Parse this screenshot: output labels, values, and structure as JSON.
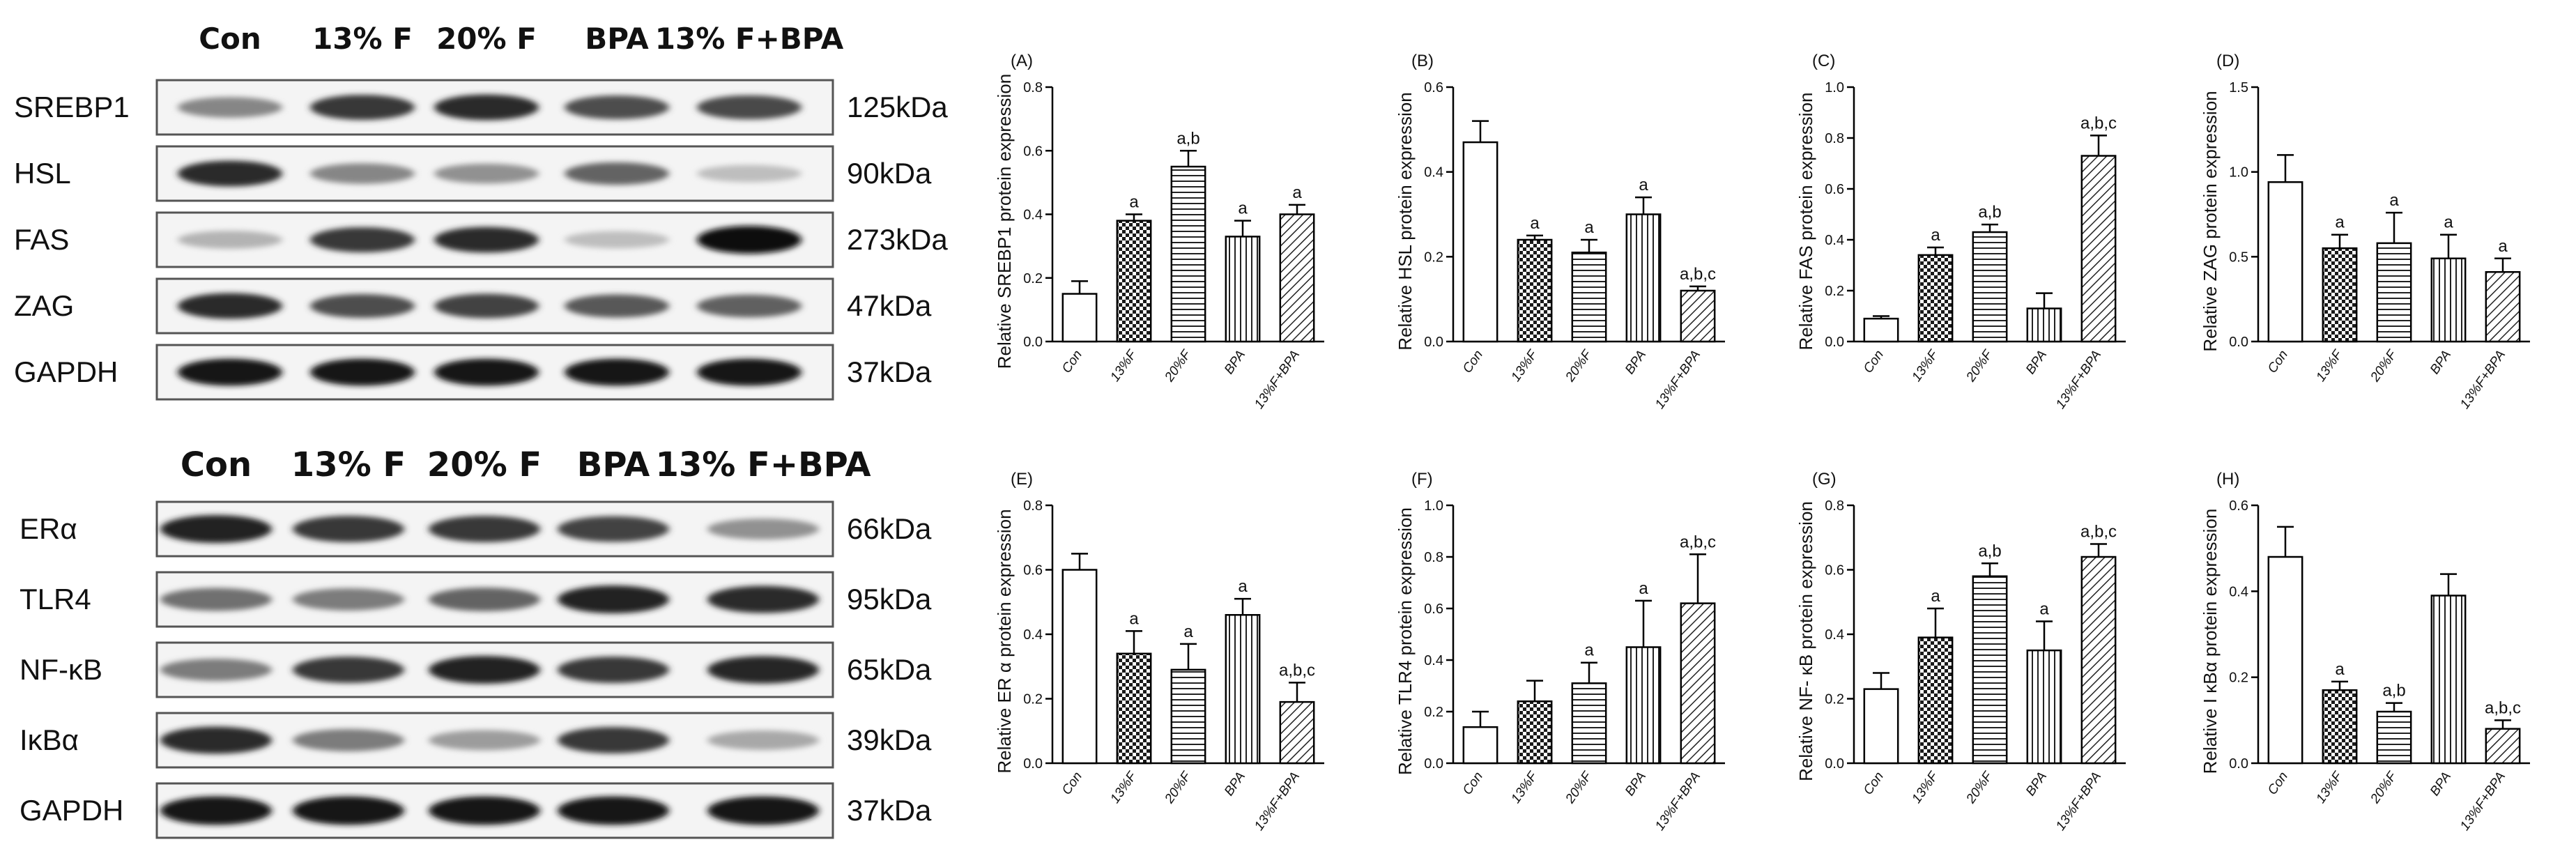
{
  "lanes": [
    "Con",
    "13% F",
    "20% F",
    "BPA",
    "13% F+BPA"
  ],
  "blots_top": [
    {
      "name": "SREBP1",
      "size": "125kDa",
      "intensity": [
        0.45,
        0.8,
        0.85,
        0.7,
        0.72
      ]
    },
    {
      "name": "HSL",
      "size": "90kDa",
      "intensity": [
        0.85,
        0.45,
        0.4,
        0.6,
        0.2
      ]
    },
    {
      "name": "FAS",
      "size": "273kDa",
      "intensity": [
        0.25,
        0.8,
        0.85,
        0.2,
        1.0
      ]
    },
    {
      "name": "ZAG",
      "size": "47kDa",
      "intensity": [
        0.85,
        0.7,
        0.75,
        0.65,
        0.62
      ]
    },
    {
      "name": "GAPDH",
      "size": "37kDa",
      "intensity": [
        0.95,
        0.95,
        0.95,
        0.95,
        0.95
      ]
    }
  ],
  "blots_bottom": [
    {
      "name": "ERα",
      "size": "66kDa",
      "intensity": [
        0.9,
        0.8,
        0.8,
        0.75,
        0.4
      ]
    },
    {
      "name": "TLR4",
      "size": "95kDa",
      "intensity": [
        0.55,
        0.5,
        0.6,
        0.9,
        0.85
      ]
    },
    {
      "name": "NF-κB",
      "size": "65kDa",
      "intensity": [
        0.5,
        0.8,
        0.9,
        0.8,
        0.88
      ]
    },
    {
      "name": "IκBα",
      "size": "39kDa",
      "intensity": [
        0.85,
        0.5,
        0.35,
        0.8,
        0.3
      ]
    },
    {
      "name": "GAPDH",
      "size": "37kDa",
      "intensity": [
        0.95,
        0.95,
        0.95,
        0.95,
        0.95
      ]
    }
  ],
  "chart_data": [
    {
      "type": "bar",
      "panel": "(A)",
      "ylabel": "Relative SREBP1 protein expression",
      "ylim": [
        0,
        0.8
      ],
      "ticks": [
        "0.0",
        "0.2",
        "0.4",
        "0.6",
        "0.8"
      ],
      "categories": [
        "Con",
        "13%F",
        "20%F",
        "BPA",
        "13%F+BPA"
      ],
      "values": [
        0.15,
        0.38,
        0.55,
        0.33,
        0.4
      ],
      "errors": [
        0.04,
        0.02,
        0.05,
        0.05,
        0.03
      ],
      "labels": [
        "",
        "a",
        "a,b",
        "a",
        "a"
      ]
    },
    {
      "type": "bar",
      "panel": "(B)",
      "ylabel": "Relative HSL protein expression",
      "ylim": [
        0,
        0.6
      ],
      "ticks": [
        "0.0",
        "0.2",
        "0.4",
        "0.6"
      ],
      "categories": [
        "Con",
        "13%F",
        "20%F",
        "BPA",
        "13%F+BPA"
      ],
      "values": [
        0.47,
        0.24,
        0.21,
        0.3,
        0.12
      ],
      "errors": [
        0.05,
        0.01,
        0.03,
        0.04,
        0.01
      ],
      "labels": [
        "",
        "a",
        "a",
        "a",
        "a,b,c"
      ]
    },
    {
      "type": "bar",
      "panel": "(C)",
      "ylabel": "Relative FAS protein expression",
      "ylim": [
        0,
        1.0
      ],
      "ticks": [
        "0.0",
        "0.2",
        "0.4",
        "0.6",
        "0.8",
        "1.0"
      ],
      "categories": [
        "Con",
        "13%F",
        "20%F",
        "BPA",
        "13%F+BPA"
      ],
      "values": [
        0.09,
        0.34,
        0.43,
        0.13,
        0.73
      ],
      "errors": [
        0.01,
        0.03,
        0.03,
        0.06,
        0.08
      ],
      "labels": [
        "",
        "a",
        "a,b",
        "",
        "a,b,c"
      ]
    },
    {
      "type": "bar",
      "panel": "(D)",
      "ylabel": "Relative ZAG protein expression",
      "ylim": [
        0,
        1.5
      ],
      "ticks": [
        "0.0",
        "0.5",
        "1.0",
        "1.5"
      ],
      "categories": [
        "Con",
        "13%F",
        "20%F",
        "BPA",
        "13%F+BPA"
      ],
      "values": [
        0.94,
        0.55,
        0.58,
        0.49,
        0.41
      ],
      "errors": [
        0.16,
        0.08,
        0.18,
        0.14,
        0.08
      ],
      "labels": [
        "",
        "a",
        "a",
        "a",
        "a"
      ]
    },
    {
      "type": "bar",
      "panel": "(E)",
      "ylabel": "Relative ER α protein expression",
      "ylim": [
        0,
        0.8
      ],
      "ticks": [
        "0.0",
        "0.2",
        "0.4",
        "0.6",
        "0.8"
      ],
      "categories": [
        "Con",
        "13%F",
        "20%F",
        "BPA",
        "13%F+BPA"
      ],
      "values": [
        0.6,
        0.34,
        0.29,
        0.46,
        0.19
      ],
      "errors": [
        0.05,
        0.07,
        0.08,
        0.05,
        0.06
      ],
      "labels": [
        "",
        "a",
        "a",
        "a",
        "a,b,c"
      ]
    },
    {
      "type": "bar",
      "panel": "(F)",
      "ylabel": "Relative TLR4 protein expression",
      "ylim": [
        0,
        1.0
      ],
      "ticks": [
        "0.0",
        "0.2",
        "0.4",
        "0.6",
        "0.8",
        "1.0"
      ],
      "categories": [
        "Con",
        "13%F",
        "20%F",
        "BPA",
        "13%F+BPA"
      ],
      "values": [
        0.14,
        0.24,
        0.31,
        0.45,
        0.62
      ],
      "errors": [
        0.06,
        0.08,
        0.08,
        0.18,
        0.19
      ],
      "labels": [
        "",
        "",
        "a",
        "a",
        "a,b,c"
      ]
    },
    {
      "type": "bar",
      "panel": "(G)",
      "ylabel": "Relative NF- κB protein expression",
      "ylim": [
        0,
        0.8
      ],
      "ticks": [
        "0.0",
        "0.2",
        "0.4",
        "0.6",
        "0.8"
      ],
      "categories": [
        "Con",
        "13%F",
        "20%F",
        "BPA",
        "13%F+BPA"
      ],
      "values": [
        0.23,
        0.39,
        0.58,
        0.35,
        0.64
      ],
      "errors": [
        0.05,
        0.09,
        0.04,
        0.09,
        0.04
      ],
      "labels": [
        "",
        "a",
        "a,b",
        "a",
        "a,b,c"
      ]
    },
    {
      "type": "bar",
      "panel": "(H)",
      "ylabel": "Relative I κBα protein expression",
      "ylim": [
        0,
        0.6
      ],
      "ticks": [
        "0.0",
        "0.2",
        "0.4",
        "0.6"
      ],
      "categories": [
        "Con",
        "13%F",
        "20%F",
        "BPA",
        "13%F+BPA"
      ],
      "values": [
        0.48,
        0.17,
        0.12,
        0.39,
        0.08
      ],
      "errors": [
        0.07,
        0.02,
        0.02,
        0.05,
        0.02
      ],
      "labels": [
        "",
        "a",
        "a,b",
        "",
        "a,b,c"
      ]
    }
  ]
}
